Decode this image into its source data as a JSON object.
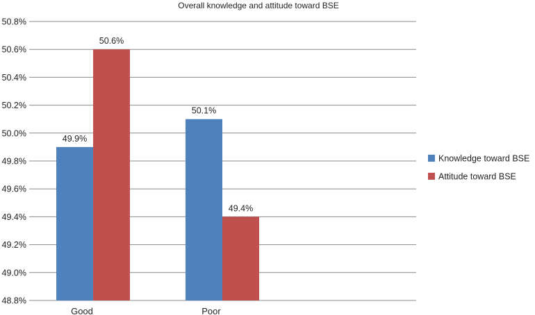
{
  "chart_data": {
    "type": "bar",
    "title": "Overall knowledge and attitude toward BSE",
    "categories": [
      "Good",
      "Poor"
    ],
    "series": [
      {
        "name": "Knowledge toward BSE",
        "values": [
          49.9,
          50.1
        ],
        "labels": [
          "49.9%",
          "50.1%"
        ],
        "color": "#4F81BD"
      },
      {
        "name": "Attitude toward BSE",
        "values": [
          50.6,
          49.4
        ],
        "labels": [
          "50.6%",
          "49.4%"
        ],
        "color": "#C0504D"
      }
    ],
    "ylim": [
      48.8,
      50.8
    ],
    "yticks": [
      "48.8%",
      "49.0%",
      "49.2%",
      "49.4%",
      "49.6%",
      "49.8%",
      "50.0%",
      "50.2%",
      "50.4%",
      "50.6%",
      "50.8%"
    ],
    "xlabel": "",
    "ylabel": "",
    "grid": true,
    "legend_position": "right",
    "gridline_color": "#888888"
  }
}
